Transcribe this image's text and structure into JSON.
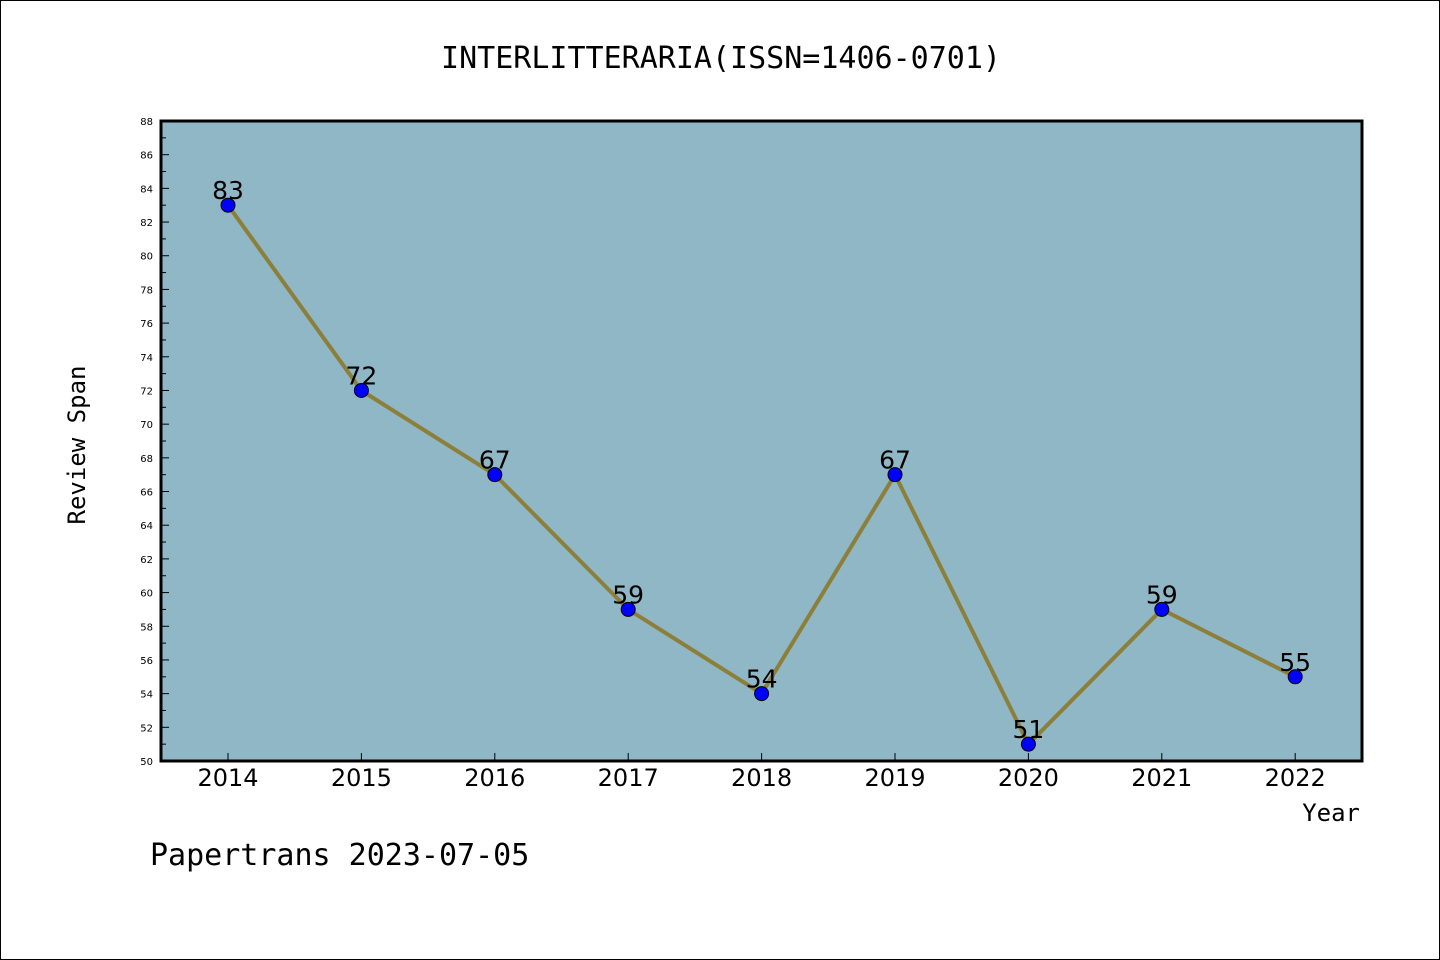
{
  "chart_data": {
    "type": "line",
    "title": "INTERLITTERARIA(ISSN=1406-0701)",
    "xlabel": "Year",
    "ylabel": "Review Span",
    "categories": [
      "2014",
      "2015",
      "2016",
      "2017",
      "2018",
      "2019",
      "2020",
      "2021",
      "2022"
    ],
    "values": [
      83,
      72,
      67,
      59,
      54,
      67,
      51,
      59,
      55
    ],
    "ylim": [
      50,
      88
    ],
    "ytick_step": 2,
    "yticks": [
      "50",
      "52",
      "54",
      "56",
      "58",
      "60",
      "62",
      "64",
      "66",
      "68",
      "70",
      "72",
      "74",
      "76",
      "78",
      "80",
      "82",
      "84",
      "86",
      "88"
    ],
    "grid": false,
    "data_labels": true,
    "colors": {
      "plot_background": "#8fb7c5",
      "line": "#8c7f3a",
      "marker": "#0000ff",
      "marker_edge": "#000000"
    }
  },
  "footer": {
    "text": "Papertrans 2023-07-05"
  }
}
